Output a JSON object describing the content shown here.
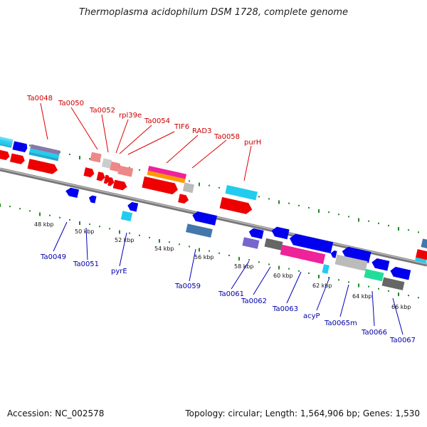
{
  "title": "Thermoplasma acidophilum DSM 1728, complete genome",
  "footer": {
    "accession": "Accession: NC_002578",
    "topology": "Topology: circular; Length: 1,564,906 bp; Genes: 1,530"
  },
  "genes_top": [
    "Ta0048",
    "Ta0050",
    "Ta0052",
    "rpl39e",
    "Ta0054",
    "TIF6",
    "RAD3",
    "Ta0058",
    "purH"
  ],
  "genes_bottom": [
    "Ta0049",
    "Ta0051",
    "pyrE",
    "Ta0059",
    "Ta0061",
    "Ta0062",
    "Ta0063",
    "acyP",
    "Ta0065m",
    "Ta0066",
    "Ta0067"
  ],
  "kbp_ticks": [
    "48 kbp",
    "50 kbp",
    "52 kbp",
    "54 kbp",
    "56 kbp",
    "58 kbp",
    "60 kbp",
    "62 kbp",
    "64 kbp",
    "66 kbp"
  ],
  "colors": {
    "forward": "#ee0000",
    "reverse": "#0000ee",
    "cyan": "#22ccee",
    "magenta": "#ee2299",
    "orange": "#ff9900",
    "gray": "#bbbbbb",
    "darkgray": "#666666",
    "pink": "#ee8888",
    "steel": "#4477aa",
    "purple": "#7766cc",
    "green": "#22dd99",
    "backbone": "#888888",
    "tick": "#228822",
    "label_top": "#cc0000",
    "label_bottom": "#0000aa"
  }
}
